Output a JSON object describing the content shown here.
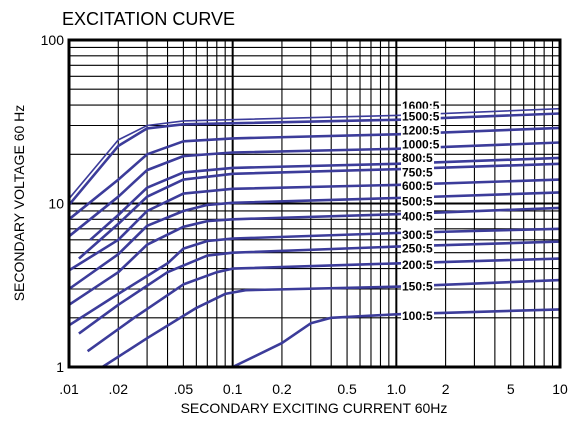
{
  "chart_data": {
    "type": "line",
    "title": "EXCITATION CURVE",
    "xlabel": "SECONDARY EXCITING CURRENT 60Hz",
    "ylabel": "SECONDARY VOLTAGE 60 Hz",
    "x_scale": "log",
    "y_scale": "log",
    "xlim": [
      0.01,
      10
    ],
    "ylim": [
      1,
      100
    ],
    "grid": true,
    "x_ticks": [
      {
        "value": 0.01,
        "label": ".01"
      },
      {
        "value": 0.02,
        "label": ".02"
      },
      {
        "value": 0.05,
        "label": ".05"
      },
      {
        "value": 0.1,
        "label": "0.1"
      },
      {
        "value": 0.2,
        "label": "0.2"
      },
      {
        "value": 0.5,
        "label": "0.5"
      },
      {
        "value": 1,
        "label": "1.0"
      },
      {
        "value": 2,
        "label": "2"
      },
      {
        "value": 5,
        "label": "5"
      },
      {
        "value": 10,
        "label": "10"
      }
    ],
    "y_ticks": [
      {
        "value": 1,
        "label": "1"
      },
      {
        "value": 10,
        "label": "10"
      },
      {
        "value": 100,
        "label": "100"
      }
    ],
    "line_color": "#3c3c9a",
    "series": [
      {
        "name": "1600:5",
        "points": [
          [
            0.01,
            10.7
          ],
          [
            0.02,
            24.5
          ],
          [
            0.03,
            30.0
          ],
          [
            0.05,
            32.0
          ],
          [
            1.0,
            34.6
          ],
          [
            10.0,
            38.0
          ]
        ],
        "label_y": 39.5
      },
      {
        "name": "1500:5",
        "points": [
          [
            0.01,
            9.8
          ],
          [
            0.02,
            22.5
          ],
          [
            0.03,
            28.8
          ],
          [
            0.05,
            30.5
          ],
          [
            1.0,
            32.5
          ],
          [
            10.0,
            35.5
          ]
        ],
        "label_y": 34.0
      },
      {
        "name": "1200:5",
        "points": [
          [
            0.01,
            8.0
          ],
          [
            0.02,
            14.0
          ],
          [
            0.03,
            20.0
          ],
          [
            0.05,
            24.0
          ],
          [
            0.1,
            25.0
          ],
          [
            1.0,
            26.5
          ],
          [
            10.0,
            29.0
          ]
        ],
        "label_y": 28.0
      },
      {
        "name": "1000:5",
        "points": [
          [
            0.01,
            6.3
          ],
          [
            0.02,
            11.0
          ],
          [
            0.03,
            16.0
          ],
          [
            0.05,
            19.5
          ],
          [
            0.1,
            20.5
          ],
          [
            1.0,
            21.6
          ],
          [
            10.0,
            23.6
          ]
        ],
        "label_y": 23.0
      },
      {
        "name": "800:5",
        "points": [
          [
            0.0135,
            6.0
          ],
          [
            0.02,
            8.5
          ],
          [
            0.03,
            12.5
          ],
          [
            0.05,
            15.5
          ],
          [
            0.1,
            16.5
          ],
          [
            1.0,
            17.5
          ],
          [
            10.0,
            19.0
          ]
        ],
        "label_y": 19.0
      },
      {
        "name": "750:5",
        "points": [
          [
            0.0115,
            4.6
          ],
          [
            0.02,
            7.5
          ],
          [
            0.03,
            11.0
          ],
          [
            0.05,
            14.0
          ],
          [
            0.1,
            15.2
          ],
          [
            1.0,
            16.2
          ],
          [
            10.0,
            17.5
          ]
        ],
        "label_y": 15.5
      },
      {
        "name": "600:5",
        "points": [
          [
            0.01,
            3.9
          ],
          [
            0.02,
            6.0
          ],
          [
            0.03,
            9.0
          ],
          [
            0.05,
            11.5
          ],
          [
            0.1,
            12.3
          ],
          [
            1.0,
            13.0
          ],
          [
            10.0,
            14.0
          ]
        ],
        "label_y": 12.8
      },
      {
        "name": "500:5",
        "points": [
          [
            0.01,
            3.0
          ],
          [
            0.02,
            4.9
          ],
          [
            0.03,
            7.3
          ],
          [
            0.05,
            9.0
          ],
          [
            0.07,
            9.8
          ],
          [
            0.1,
            10.1
          ],
          [
            1.0,
            10.8
          ],
          [
            10.0,
            11.7
          ]
        ],
        "label_y": 10.3
      },
      {
        "name": "400:5",
        "points": [
          [
            0.01,
            2.4
          ],
          [
            0.02,
            3.8
          ],
          [
            0.03,
            5.6
          ],
          [
            0.05,
            7.2
          ],
          [
            0.07,
            7.8
          ],
          [
            0.1,
            8.0
          ],
          [
            1.0,
            8.6
          ],
          [
            10.0,
            9.4
          ]
        ],
        "label_y": 8.3
      },
      {
        "name": "300:5",
        "points": [
          [
            0.01,
            1.8
          ],
          [
            0.02,
            2.8
          ],
          [
            0.04,
            4.3
          ],
          [
            0.05,
            5.3
          ],
          [
            0.07,
            5.9
          ],
          [
            0.1,
            6.1
          ],
          [
            1.0,
            6.6
          ],
          [
            10.0,
            7.0
          ]
        ],
        "label_y": 6.4
      },
      {
        "name": "250:5",
        "points": [
          [
            0.0115,
            1.6
          ],
          [
            0.02,
            2.4
          ],
          [
            0.04,
            3.8
          ],
          [
            0.07,
            4.8
          ],
          [
            0.1,
            5.0
          ],
          [
            1.0,
            5.45
          ],
          [
            10.0,
            5.85
          ]
        ],
        "label_y": 5.3
      },
      {
        "name": "200:5",
        "points": [
          [
            0.013,
            1.25
          ],
          [
            0.025,
            2.0
          ],
          [
            0.05,
            3.2
          ],
          [
            0.08,
            3.8
          ],
          [
            0.1,
            4.0
          ],
          [
            1.0,
            4.3
          ],
          [
            10.0,
            4.6
          ]
        ],
        "label_y": 4.2
      },
      {
        "name": "150:5",
        "points": [
          [
            0.016,
            1.0
          ],
          [
            0.03,
            1.5
          ],
          [
            0.06,
            2.3
          ],
          [
            0.09,
            2.8
          ],
          [
            0.12,
            2.95
          ],
          [
            1.0,
            3.1
          ],
          [
            10.0,
            3.4
          ]
        ],
        "label_y": 3.1
      },
      {
        "name": "100:5",
        "points": [
          [
            0.025,
            1.0
          ],
          [
            0.1,
            1.0
          ],
          [
            0.2,
            1.4
          ],
          [
            0.3,
            1.85
          ],
          [
            0.4,
            2.0
          ],
          [
            1.0,
            2.1
          ],
          [
            10.0,
            2.25
          ]
        ],
        "label_y": 2.05
      }
    ]
  }
}
